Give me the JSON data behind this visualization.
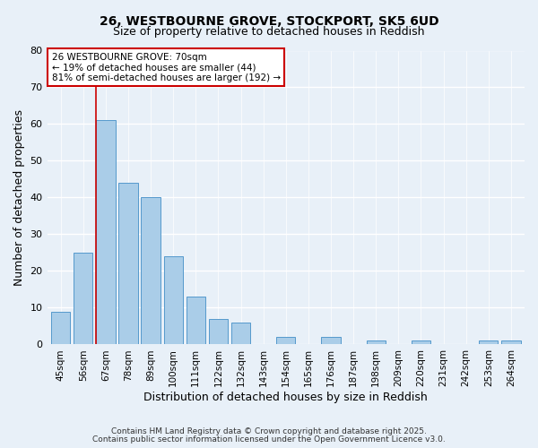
{
  "title": "26, WESTBOURNE GROVE, STOCKPORT, SK5 6UD",
  "subtitle": "Size of property relative to detached houses in Reddish",
  "xlabel": "Distribution of detached houses by size in Reddish",
  "ylabel": "Number of detached properties",
  "bar_labels": [
    "45sqm",
    "56sqm",
    "67sqm",
    "78sqm",
    "89sqm",
    "100sqm",
    "111sqm",
    "122sqm",
    "132sqm",
    "143sqm",
    "154sqm",
    "165sqm",
    "176sqm",
    "187sqm",
    "198sqm",
    "209sqm",
    "220sqm",
    "231sqm",
    "242sqm",
    "253sqm",
    "264sqm"
  ],
  "bar_values": [
    9,
    25,
    61,
    44,
    40,
    24,
    13,
    7,
    6,
    0,
    2,
    0,
    2,
    0,
    1,
    0,
    1,
    0,
    0,
    1,
    1
  ],
  "bar_color": "#aacde8",
  "bar_edge_color": "#5599cc",
  "ylim": [
    0,
    80
  ],
  "yticks": [
    0,
    10,
    20,
    30,
    40,
    50,
    60,
    70,
    80
  ],
  "vline_x_index": 2,
  "vline_color": "#cc0000",
  "annotation_title": "26 WESTBOURNE GROVE: 70sqm",
  "annotation_line1": "← 19% of detached houses are smaller (44)",
  "annotation_line2": "81% of semi-detached houses are larger (192) →",
  "annotation_box_color": "#ffffff",
  "annotation_box_edge": "#cc0000",
  "bg_color": "#e8f0f8",
  "footer1": "Contains HM Land Registry data © Crown copyright and database right 2025.",
  "footer2": "Contains public sector information licensed under the Open Government Licence v3.0."
}
